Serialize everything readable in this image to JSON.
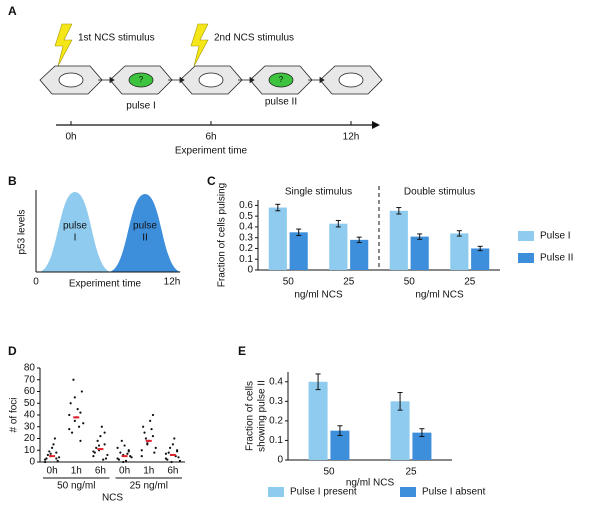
{
  "panel_labels": [
    "A",
    "B",
    "C",
    "D",
    "E"
  ],
  "diagram_a": {
    "stimulus_1": "1st NCS stimulus",
    "stimulus_2": "2nd NCS stimulus",
    "cell_marker": "?",
    "pulse_1": "pulse I",
    "pulse_2": "pulse II",
    "times": [
      "0h",
      "6h",
      "12h"
    ],
    "axis_label": "Experiment time"
  },
  "schematic_b": {
    "ylabel": "p53 levels",
    "pulse_1": [
      "pulse",
      "I"
    ],
    "pulse_2": [
      "pulse",
      "II"
    ],
    "x_start": "0",
    "x_end": "12h",
    "xlabel": "Experiment time"
  },
  "chart_data": [
    {
      "type": "bar",
      "ylabel": [
        "Fraction of cells pulsing"
      ],
      "xlabel": "ng/ml NCS",
      "groups": [
        "Single stimulus",
        "Double stimulus"
      ],
      "categories": [
        "50",
        "25",
        "50",
        "25"
      ],
      "series": [
        {
          "name": "Pulse I",
          "color": "#8ecbee",
          "values": [
            0.58,
            0.43,
            0.55,
            0.34
          ],
          "errors": [
            0.03,
            0.03,
            0.03,
            0.025
          ]
        },
        {
          "name": "Pulse II",
          "color": "#3d8fdb",
          "values": [
            0.35,
            0.28,
            0.31,
            0.2
          ],
          "errors": [
            0.03,
            0.025,
            0.025,
            0.02
          ]
        }
      ],
      "ylim": [
        0,
        0.65
      ],
      "yticks": [
        0,
        0.1,
        0.2,
        0.3,
        0.4,
        0.5,
        0.6
      ],
      "legend": "right"
    },
    {
      "type": "strip",
      "ylabel": "# of foci",
      "xlabel": "NCS",
      "groups": [
        "50 ng/ml",
        "25 ng/ml"
      ],
      "categories": [
        "0h",
        "1h",
        "6h",
        "0h",
        "1h",
        "6h"
      ],
      "points": [
        [
          2,
          5,
          8,
          3,
          12,
          1,
          6,
          15,
          4,
          9,
          20,
          0,
          7,
          3
        ],
        [
          28,
          35,
          42,
          50,
          38,
          60,
          25,
          45,
          33,
          70,
          30,
          40,
          55,
          18
        ],
        [
          5,
          10,
          15,
          8,
          22,
          3,
          12,
          30,
          6,
          18,
          2,
          9,
          14,
          25
        ],
        [
          3,
          6,
          10,
          2,
          14,
          5,
          8,
          1,
          4,
          18,
          7,
          12,
          0,
          9
        ],
        [
          10,
          15,
          22,
          30,
          18,
          8,
          25,
          35,
          12,
          20,
          28,
          5,
          16,
          40
        ],
        [
          3,
          6,
          10,
          2,
          15,
          4,
          8,
          20,
          1,
          12,
          5,
          7,
          0,
          9
        ]
      ],
      "means": [
        5,
        38,
        11,
        5,
        18,
        6
      ],
      "point_color": "#111111",
      "mean_color": "#e0202a",
      "ylim": [
        0,
        80
      ],
      "yticks": [
        0,
        10,
        20,
        30,
        40,
        50,
        60,
        70,
        80
      ]
    },
    {
      "type": "bar",
      "ylabel": [
        "Fraction of cells",
        "showing pulse II"
      ],
      "xlabel": "ng/ml NCS",
      "categories": [
        "50",
        "25"
      ],
      "series": [
        {
          "name": "Pulse I present",
          "color": "#8ecbee",
          "values": [
            0.4,
            0.3
          ],
          "errors": [
            0.04,
            0.045
          ]
        },
        {
          "name": "Pulse I absent",
          "color": "#3d8fdb",
          "values": [
            0.15,
            0.14
          ],
          "errors": [
            0.025,
            0.02
          ]
        }
      ],
      "ylim": [
        0,
        0.45
      ],
      "yticks": [
        0,
        0.1,
        0.2,
        0.3,
        0.4
      ],
      "legend": "bottom"
    }
  ]
}
